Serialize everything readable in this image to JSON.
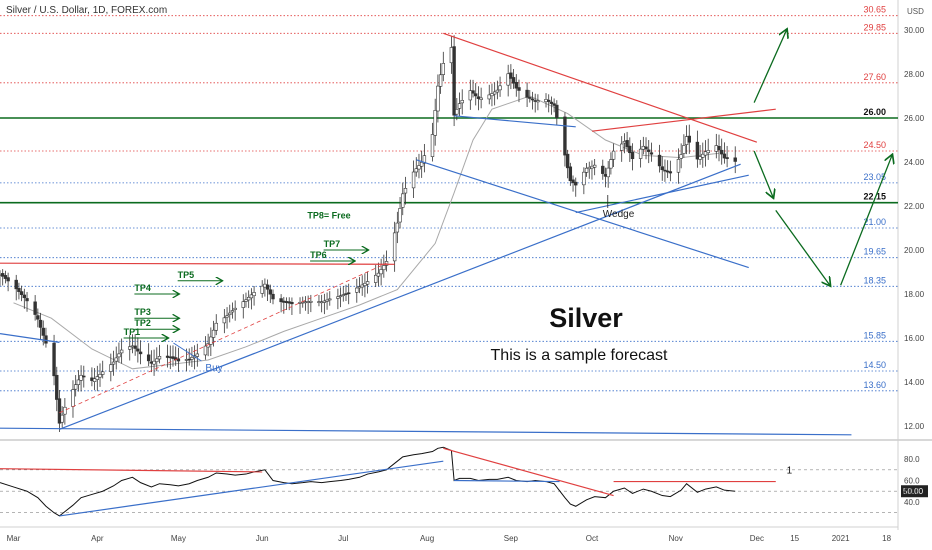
{
  "header": {
    "title": "Silver / U.S. Dollar, 1D, FOREX.com",
    "currency": "USD"
  },
  "annotations": {
    "main_title": "Silver",
    "subtitle": "This is a sample forecast"
  },
  "chart_data": [
    {
      "type": "candlestick",
      "title": "",
      "x_labels": [
        "Mar",
        "Apr",
        "May",
        "Jun",
        "Jul",
        "Aug",
        "Sep",
        "Oct",
        "Nov",
        "Dec",
        "15",
        "2021",
        "18"
      ],
      "y_ticks": [
        12.0,
        14.0,
        16.0,
        18.0,
        20.0,
        22.0,
        24.0,
        26.0,
        28.0,
        30.0
      ],
      "ylim": [
        11.5,
        31.0
      ],
      "levels": [
        {
          "value": 30.65,
          "label": "30.65",
          "color": "#e04040",
          "style": "dotted"
        },
        {
          "value": 29.85,
          "label": "29.85",
          "color": "#e04040",
          "style": "dotted"
        },
        {
          "value": 27.6,
          "label": "27.60",
          "color": "#e04040",
          "style": "dotted"
        },
        {
          "value": 26.0,
          "label": "26.00",
          "color": "#0b6b1f",
          "style": "solid"
        },
        {
          "value": 24.5,
          "label": "24.50",
          "color": "#e04040",
          "style": "dotted"
        },
        {
          "value": 23.05,
          "label": "23.05",
          "color": "#3a6fc9",
          "style": "dotted"
        },
        {
          "value": 22.15,
          "label": "22.15",
          "color": "#0b6b1f",
          "style": "solid"
        },
        {
          "value": 21.0,
          "label": "21.00",
          "color": "#3a6fc9",
          "style": "dotted"
        },
        {
          "value": 19.65,
          "label": "19.65",
          "color": "#3a6fc9",
          "style": "dotted"
        },
        {
          "value": 18.35,
          "label": "18.35",
          "color": "#3a6fc9",
          "style": "dotted"
        },
        {
          "value": 15.85,
          "label": "15.85",
          "color": "#3a6fc9",
          "style": "dotted"
        },
        {
          "value": 14.5,
          "label": "14.50",
          "color": "#3a6fc9",
          "style": "dotted"
        },
        {
          "value": 13.6,
          "label": "13.60",
          "color": "#3a6fc9",
          "style": "dotted"
        }
      ],
      "price_path": [
        [
          "Feb 25",
          18.9
        ],
        [
          "Mar 1",
          18.3
        ],
        [
          "Mar 6",
          17.7
        ],
        [
          "Mar 10",
          16.9
        ],
        [
          "Mar 13",
          15.8
        ],
        [
          "Mar 16",
          14.3
        ],
        [
          "Mar 18",
          12.1
        ],
        [
          "Mar 20",
          12.8
        ],
        [
          "Mar 23",
          13.6
        ],
        [
          "Mar 26",
          14.3
        ],
        [
          "Mar 30",
          14.1
        ],
        [
          "Apr 3",
          14.5
        ],
        [
          "Apr 7",
          14.9
        ],
        [
          "Apr 10",
          15.4
        ],
        [
          "Apr 14",
          15.6
        ],
        [
          "Apr 17",
          15.3
        ],
        [
          "Apr 21",
          14.9
        ],
        [
          "Apr 24",
          15.2
        ],
        [
          "Apr 28",
          15.1
        ],
        [
          "May 1",
          14.9
        ],
        [
          "May 5",
          15.0
        ],
        [
          "May 8",
          15.3
        ],
        [
          "May 12",
          15.8
        ],
        [
          "May 15",
          16.7
        ],
        [
          "May 19",
          17.0
        ],
        [
          "May 22",
          17.3
        ],
        [
          "May 26",
          17.7
        ],
        [
          "May 29",
          18.1
        ],
        [
          "Jun 2",
          18.5
        ],
        [
          "Jun 5",
          17.8
        ],
        [
          "Jun 9",
          17.6
        ],
        [
          "Jun 12",
          17.5
        ],
        [
          "Jun 16",
          17.6
        ],
        [
          "Jun 19",
          17.7
        ],
        [
          "Jun 23",
          17.7
        ],
        [
          "Jun 26",
          17.8
        ],
        [
          "Jun 30",
          17.9
        ],
        [
          "Jul 3",
          18.0
        ],
        [
          "Jul 7",
          18.3
        ],
        [
          "Jul 10",
          18.6
        ],
        [
          "Jul 14",
          19.0
        ],
        [
          "Jul 17",
          19.5
        ],
        [
          "Jul 21",
          21.2
        ],
        [
          "Jul 23",
          22.5
        ],
        [
          "Jul 27",
          23.5
        ],
        [
          "Jul 30",
          24.0
        ],
        [
          "Aug 3",
          25.3
        ],
        [
          "Aug 5",
          27.5
        ],
        [
          "Aug 7",
          28.5
        ],
        [
          "Aug 10",
          29.2
        ],
        [
          "Aug 11",
          26.1
        ],
        [
          "Aug 13",
          26.6
        ],
        [
          "Aug 17",
          27.2
        ],
        [
          "Aug 20",
          26.9
        ],
        [
          "Aug 24",
          27.1
        ],
        [
          "Aug 27",
          27.3
        ],
        [
          "Aug 31",
          28.0
        ],
        [
          "Sep 3",
          27.3
        ],
        [
          "Sep 7",
          26.9
        ],
        [
          "Sep 10",
          26.8
        ],
        [
          "Sep 14",
          26.9
        ],
        [
          "Sep 17",
          26.6
        ],
        [
          "Sep 21",
          24.3
        ],
        [
          "Sep 23",
          23.1
        ],
        [
          "Sep 25",
          22.9
        ],
        [
          "Sep 29",
          23.7
        ],
        [
          "Oct 2",
          23.9
        ],
        [
          "Oct 6",
          23.4
        ],
        [
          "Oct 9",
          24.5
        ],
        [
          "Oct 13",
          24.9
        ],
        [
          "Oct 16",
          24.1
        ],
        [
          "Oct 20",
          24.7
        ],
        [
          "Oct 23",
          24.4
        ],
        [
          "Oct 27",
          23.7
        ],
        [
          "Oct 30",
          23.5
        ],
        [
          "Nov 3",
          24.3
        ],
        [
          "Nov 5",
          25.1
        ],
        [
          "Nov 9",
          24.1
        ],
        [
          "Nov 12",
          24.5
        ],
        [
          "Nov 16",
          24.8
        ],
        [
          "Nov 19",
          24.2
        ],
        [
          "Nov 23",
          24.0
        ]
      ],
      "moving_average": [
        [
          "Mar 1",
          17.6
        ],
        [
          "Mar 15",
          16.9
        ],
        [
          "Mar 30",
          15.5
        ],
        [
          "Apr 14",
          14.6
        ],
        [
          "Apr 28",
          14.8
        ],
        [
          "May 12",
          15.0
        ],
        [
          "May 26",
          15.6
        ],
        [
          "Jun 9",
          16.3
        ],
        [
          "Jun 23",
          16.9
        ],
        [
          "Jul 7",
          17.5
        ],
        [
          "Jul 21",
          18.2
        ],
        [
          "Aug 4",
          20.3
        ],
        [
          "Aug 11",
          22.6
        ],
        [
          "Aug 18",
          25.0
        ],
        [
          "Aug 25",
          26.4
        ],
        [
          "Sep 8",
          27.0
        ],
        [
          "Sep 22",
          26.2
        ],
        [
          "Oct 6",
          25.0
        ],
        [
          "Oct 20",
          24.3
        ],
        [
          "Nov 3",
          24.2
        ],
        [
          "Nov 17",
          24.4
        ]
      ],
      "take_profit_labels": [
        {
          "label": "TP1",
          "value": 16.0,
          "date": "Apr 27"
        },
        {
          "label": "TP2",
          "value": 16.4,
          "date": "May 1"
        },
        {
          "label": "TP3",
          "value": 16.9,
          "date": "May 1"
        },
        {
          "label": "TP4",
          "value": 18.0,
          "date": "May 1"
        },
        {
          "label": "TP5",
          "value": 18.6,
          "date": "May 17"
        },
        {
          "label": "TP6",
          "value": 19.5,
          "date": "Jul 5"
        },
        {
          "label": "TP7",
          "value": 20.0,
          "date": "Jul 10"
        },
        {
          "label": "TP8= Free",
          "value": 21.3,
          "date": "Jul 4"
        }
      ],
      "trade_labels": [
        {
          "label": "Buy",
          "value": 14.5,
          "date": "May 11"
        },
        {
          "label": "Wedge",
          "value": 21.5,
          "date": "Oct 5"
        }
      ],
      "trendlines": [
        {
          "color": "#e04040",
          "from": [
            "Aug 7",
            29.85
          ],
          "to": [
            "Dec 1",
            24.9
          ]
        },
        {
          "color": "#e04040",
          "from": [
            "Oct 1",
            25.4
          ],
          "to": [
            "Dec 8",
            26.4
          ]
        },
        {
          "color": "#e04040",
          "from": [
            "Feb 25",
            19.4
          ],
          "to": [
            "Jul 20",
            19.35
          ]
        },
        {
          "color": "#3a6fc9",
          "from": [
            "Mar 18",
            11.85
          ],
          "to": [
            "Nov 25",
            23.9
          ]
        },
        {
          "color": "#3a6fc9",
          "from": [
            "Feb 25",
            16.2
          ],
          "to": [
            "Mar 18",
            15.8
          ]
        },
        {
          "color": "#3a6fc9",
          "from": [
            "Feb 25",
            11.9
          ],
          "to": [
            "Jan 5",
            11.6
          ]
        },
        {
          "color": "#3a6fc9",
          "from": [
            "Jul 28",
            24.1
          ],
          "to": [
            "Nov 28",
            19.2
          ]
        },
        {
          "color": "#3a6fc9",
          "from": [
            "Aug 11",
            26.1
          ],
          "to": [
            "Sep 25",
            25.6
          ]
        },
        {
          "color": "#3a6fc9",
          "from": [
            "Sep 25",
            21.7
          ],
          "to": [
            "Nov 28",
            23.4
          ]
        }
      ],
      "forecast_arrows": [
        [
          [
            "Nov 30",
            24.5
          ],
          [
            "Dec 7",
            22.4
          ]
        ],
        [
          [
            "Dec 8",
            21.8
          ],
          [
            "Dec 28",
            18.4
          ]
        ],
        [
          [
            "Jan 1",
            18.4
          ],
          [
            "Jan 20",
            24.3
          ]
        ],
        [
          [
            "Nov 30",
            26.7
          ],
          [
            "Dec 12",
            30.0
          ]
        ]
      ]
    },
    {
      "type": "line",
      "title": "",
      "y_ticks": [
        40.0,
        50.0,
        60.0,
        80.0
      ],
      "ylim": [
        26,
        94
      ],
      "current_value": "50.00",
      "levels": [
        {
          "value": 70.0,
          "color": "#888888",
          "style": "dashed"
        },
        {
          "value": 50.0,
          "color": "#888888",
          "style": "dashed"
        },
        {
          "value": 30.0,
          "color": "#888888",
          "style": "dashed"
        }
      ],
      "marker": {
        "label": "1",
        "value": 66.5
      },
      "oscillator_path": [
        [
          "Feb 25",
          58
        ],
        [
          "Mar 1",
          54
        ],
        [
          "Mar 6",
          50
        ],
        [
          "Mar 10",
          44
        ],
        [
          "Mar 13",
          36
        ],
        [
          "Mar 16",
          30
        ],
        [
          "Mar 18",
          27
        ],
        [
          "Mar 20",
          31
        ],
        [
          "Mar 23",
          37
        ],
        [
          "Mar 26",
          44
        ],
        [
          "Mar 30",
          47
        ],
        [
          "Apr 3",
          50
        ],
        [
          "Apr 7",
          55
        ],
        [
          "Apr 10",
          60
        ],
        [
          "Apr 14",
          63
        ],
        [
          "Apr 17",
          58
        ],
        [
          "Apr 21",
          54
        ],
        [
          "Apr 24",
          57
        ],
        [
          "Apr 28",
          56
        ],
        [
          "May 1",
          55
        ],
        [
          "May 5",
          57
        ],
        [
          "May 8",
          60
        ],
        [
          "May 12",
          63
        ],
        [
          "May 15",
          67
        ],
        [
          "May 19",
          66
        ],
        [
          "May 22",
          65
        ],
        [
          "May 26",
          66
        ],
        [
          "May 29",
          68
        ],
        [
          "Jun 2",
          70
        ],
        [
          "Jun 5",
          60
        ],
        [
          "Jun 9",
          58
        ],
        [
          "Jun 12",
          57
        ],
        [
          "Jun 16",
          58
        ],
        [
          "Jun 19",
          59
        ],
        [
          "Jun 23",
          58
        ],
        [
          "Jun 26",
          59
        ],
        [
          "Jun 30",
          60
        ],
        [
          "Jul 3",
          61
        ],
        [
          "Jul 7",
          63
        ],
        [
          "Jul 10",
          66
        ],
        [
          "Jul 14",
          68
        ],
        [
          "Jul 17",
          70
        ],
        [
          "Jul 21",
          78
        ],
        [
          "Jul 23",
          82
        ],
        [
          "Jul 27",
          84
        ],
        [
          "Jul 30",
          85
        ],
        [
          "Aug 3",
          87
        ],
        [
          "Aug 5",
          90
        ],
        [
          "Aug 7",
          91
        ],
        [
          "Aug 10",
          88
        ],
        [
          "Aug 11",
          60
        ],
        [
          "Aug 13",
          62
        ],
        [
          "Aug 17",
          62
        ],
        [
          "Aug 20",
          60
        ],
        [
          "Aug 24",
          61
        ],
        [
          "Aug 27",
          61
        ],
        [
          "Aug 31",
          63
        ],
        [
          "Sep 3",
          60
        ],
        [
          "Sep 7",
          59
        ],
        [
          "Sep 10",
          60
        ],
        [
          "Sep 14",
          59
        ],
        [
          "Sep 17",
          57
        ],
        [
          "Sep 21",
          44
        ],
        [
          "Sep 23",
          38
        ],
        [
          "Sep 25",
          36
        ],
        [
          "Sep 29",
          42
        ],
        [
          "Oct 2",
          45
        ],
        [
          "Oct 6",
          44
        ],
        [
          "Oct 9",
          50
        ],
        [
          "Oct 13",
          53
        ],
        [
          "Oct 16",
          48
        ],
        [
          "Oct 20",
          52
        ],
        [
          "Oct 23",
          50
        ],
        [
          "Oct 27",
          46
        ],
        [
          "Oct 30",
          45
        ],
        [
          "Nov 3",
          51
        ],
        [
          "Nov 5",
          57
        ],
        [
          "Nov 9",
          49
        ],
        [
          "Nov 12",
          52
        ],
        [
          "Nov 16",
          54
        ],
        [
          "Nov 19",
          51
        ],
        [
          "Nov 23",
          50
        ]
      ],
      "trendlines": [
        {
          "color": "#e04040",
          "from": [
            "Feb 25",
            71
          ],
          "to": [
            "Jun 1",
            68
          ]
        },
        {
          "color": "#3a6fc9",
          "from": [
            "Mar 18",
            27
          ],
          "to": [
            "Aug 7",
            78
          ]
        },
        {
          "color": "#e04040",
          "from": [
            "Aug 7",
            90
          ],
          "to": [
            "Oct 9",
            46
          ]
        },
        {
          "color": "#e04040",
          "from": [
            "Oct 9",
            59
          ],
          "to": [
            "Dec 8",
            59
          ]
        },
        {
          "color": "#3a6fc9",
          "from": [
            "Aug 11",
            60
          ],
          "to": [
            "Sep 19",
            59
          ]
        }
      ]
    }
  ],
  "colors": {
    "up": "#26a69a",
    "down": "#ef5350",
    "candle": "#3a3a3a",
    "ma": "#a9a9a9",
    "green": "#0b6b1f",
    "red": "#e04040",
    "blue": "#3a6fc9"
  }
}
